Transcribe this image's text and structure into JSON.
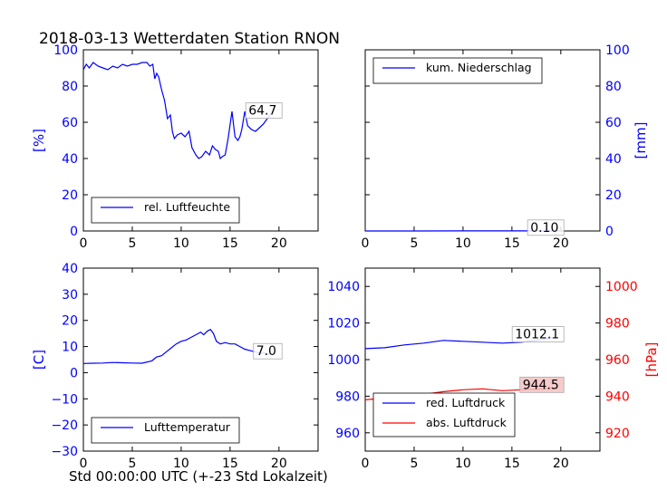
{
  "title": "2018-03-13 Wetterdaten Station RNON",
  "xlabel": "Std 00:00:00 UTC (+-23 Std Lokalzeit)",
  "colors": {
    "left_axis": "#0000ff",
    "right_axis": "#ff0000",
    "line_blue": "#0000ff",
    "line_red": "#ff0000",
    "annot_red_bg": "#f4c2c2"
  },
  "chart_data": [
    {
      "id": "humidity",
      "type": "line",
      "xlim": [
        0,
        24
      ],
      "xticks": [
        "0",
        "5",
        "10",
        "15",
        "20"
      ],
      "ylim": [
        0,
        100
      ],
      "yticks": [
        "0",
        "20",
        "40",
        "60",
        "80",
        "100"
      ],
      "ylabel": "[%]",
      "legend": {
        "loc": "lower-left",
        "entries": [
          "rel. Luftfeuchte"
        ]
      },
      "annotation": "64.7",
      "series": [
        {
          "name": "rel. Luftfeuchte",
          "color": "#0000ff",
          "x": [
            0,
            0.3,
            0.6,
            1,
            1.5,
            2,
            2.5,
            3,
            3.5,
            4,
            4.5,
            5,
            5.5,
            6,
            6.5,
            6.8,
            7.1,
            7.3,
            7.5,
            7.7,
            8,
            8.3,
            8.6,
            8.9,
            9.1,
            9.3,
            9.6,
            10,
            10.4,
            10.8,
            11.1,
            11.5,
            11.8,
            12.1,
            12.5,
            12.9,
            13.2,
            13.5,
            13.8,
            14,
            14.2,
            14.5,
            14.8,
            15.2,
            15.5,
            15.8,
            16,
            16.2,
            16.5,
            16.8,
            17.2,
            17.6,
            18,
            18.4,
            18.8,
            19.2
          ],
          "y": [
            89,
            92,
            90,
            93,
            91,
            90,
            89,
            91,
            90,
            92,
            91,
            92,
            92,
            93,
            93,
            91,
            92,
            84,
            87,
            85,
            78,
            72,
            62,
            64,
            55,
            51,
            53,
            54,
            52,
            55,
            46,
            42,
            40,
            41,
            44,
            42,
            47,
            45,
            44,
            40,
            41,
            42,
            51,
            66,
            52,
            50,
            52,
            56,
            66,
            58,
            56,
            55,
            57,
            59,
            62,
            64.7
          ]
        }
      ]
    },
    {
      "id": "precipitation",
      "type": "line",
      "xlim": [
        0,
        24
      ],
      "xticks": [
        "0",
        "5",
        "10",
        "15",
        "20"
      ],
      "ylim": [
        0,
        100
      ],
      "yticks": [
        "0",
        "20",
        "40",
        "60",
        "80",
        "100"
      ],
      "ylabel": "[mm]",
      "legend": {
        "loc": "upper-left",
        "entries": [
          "kum. Niederschlag"
        ]
      },
      "annotation": "0.10",
      "series": [
        {
          "name": "kum. Niederschlag",
          "color": "#0000ff",
          "x": [
            0,
            5,
            10,
            15,
            19.2
          ],
          "y": [
            0,
            0,
            0.05,
            0.1,
            0.1
          ]
        }
      ]
    },
    {
      "id": "temperature",
      "type": "line",
      "xlim": [
        0,
        24
      ],
      "xticks": [
        "0",
        "5",
        "10",
        "15",
        "20"
      ],
      "ylim": [
        -30,
        40
      ],
      "yticks": [
        "−30",
        "−20",
        "−10",
        "0",
        "10",
        "20",
        "30",
        "40"
      ],
      "ylabel": "[C]",
      "legend": {
        "loc": "lower-left",
        "entries": [
          "Lufttemperatur"
        ]
      },
      "annotation": "7.0",
      "series": [
        {
          "name": "Lufttemperatur",
          "color": "#0000ff",
          "x": [
            0,
            1,
            2,
            3,
            4,
            5,
            6,
            7,
            7.5,
            8,
            8.5,
            9,
            9.5,
            10,
            10.5,
            11,
            11.5,
            12,
            12.3,
            12.7,
            13,
            13.3,
            13.6,
            14,
            14.5,
            15,
            15.5,
            16,
            16.5,
            17,
            17.5,
            18,
            18.5,
            19.2
          ],
          "y": [
            3.5,
            3.6,
            3.7,
            3.9,
            3.8,
            3.7,
            3.6,
            4.5,
            6,
            6.5,
            8,
            9.5,
            11,
            12,
            12.5,
            13.5,
            14.5,
            15.5,
            14.5,
            16,
            16.5,
            15,
            12,
            11,
            11.5,
            11,
            11,
            10,
            9,
            8.5,
            8,
            7.5,
            7.5,
            7.0
          ]
        }
      ]
    },
    {
      "id": "pressure",
      "type": "line",
      "xlim": [
        0,
        24
      ],
      "xticks": [
        "0",
        "5",
        "10",
        "15",
        "20"
      ],
      "ylim": [
        950,
        1050
      ],
      "yticks": [
        "960",
        "980",
        "1000",
        "1020",
        "1040"
      ],
      "y2lim": [
        910,
        1010
      ],
      "y2ticks": [
        "920",
        "940",
        "960",
        "980",
        "1000"
      ],
      "y2label": "[hPa]",
      "legend": {
        "loc": "lower-left",
        "entries": [
          "red. Luftdruck",
          "abs. Luftdruck"
        ]
      },
      "annotations": [
        "1012.1",
        "944.5"
      ],
      "series": [
        {
          "name": "red. Luftdruck",
          "color": "#0000ff",
          "axis": "left",
          "x": [
            0,
            2,
            4,
            6,
            8,
            10,
            12,
            14,
            16,
            18,
            19.2
          ],
          "y": [
            1006,
            1006.5,
            1008,
            1009,
            1010.5,
            1010,
            1009.5,
            1009,
            1009.5,
            1011,
            1012.1
          ]
        },
        {
          "name": "abs. Luftdruck",
          "color": "#ff0000",
          "axis": "right",
          "x": [
            0,
            2,
            4,
            6,
            8,
            10,
            12,
            14,
            16,
            18,
            19.2
          ],
          "y": [
            938,
            939,
            940,
            941,
            942.5,
            943.5,
            944,
            943,
            943.5,
            944,
            944.5
          ]
        }
      ]
    }
  ]
}
